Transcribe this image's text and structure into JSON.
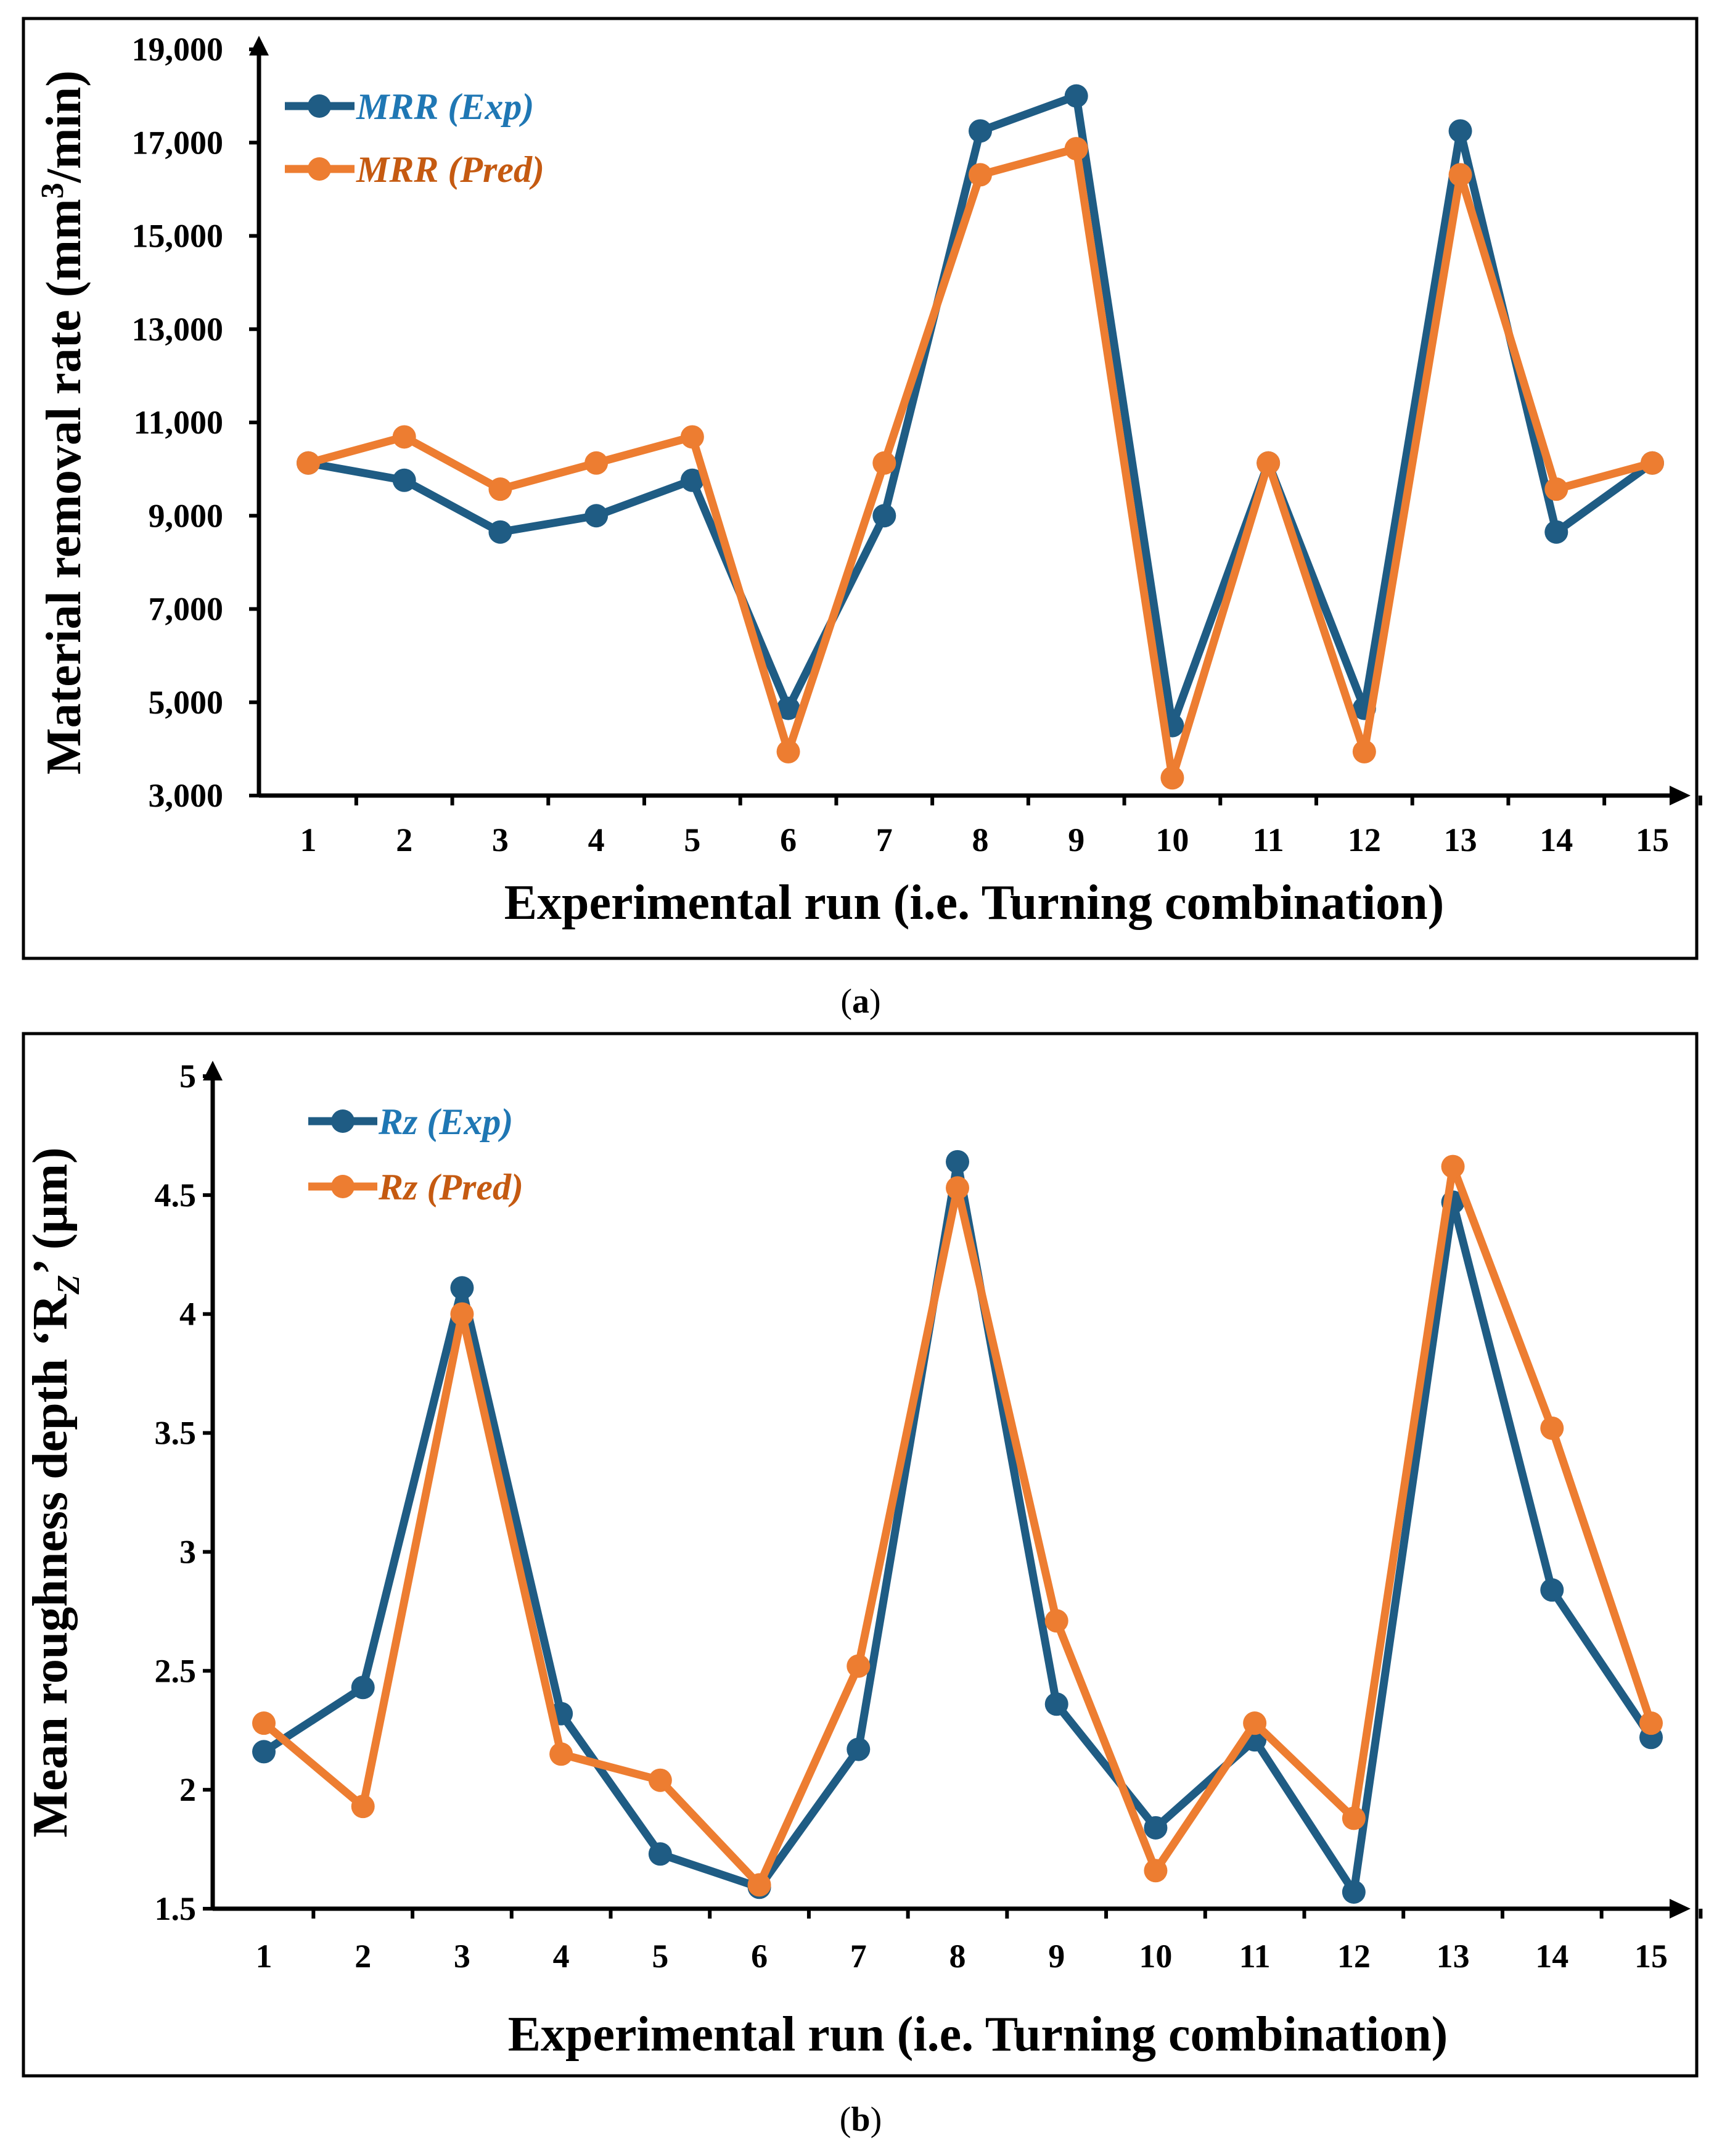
{
  "chart_data": [
    {
      "id": "a",
      "type": "line",
      "panel_label": "a",
      "title": "",
      "xlabel": "Experimental run (i.e. Turning combination)",
      "ylabel_main": "Material removal rate (mm",
      "ylabel_sup": "3",
      "ylabel_tail": "/min)",
      "categories": [
        "1",
        "2",
        "3",
        "4",
        "5",
        "6",
        "7",
        "8",
        "9",
        "10",
        "11",
        "12",
        "13",
        "14",
        "15"
      ],
      "ylim": [
        3000,
        19000
      ],
      "yticks": [
        3000,
        5000,
        7000,
        9000,
        11000,
        13000,
        15000,
        17000,
        19000
      ],
      "ytick_labels": [
        "3,000",
        "5,000",
        "7,000",
        "9,000",
        "11,000",
        "13,000",
        "15,000",
        "17,000",
        "19,000"
      ],
      "grid": false,
      "legend_position": "top-left",
      "series": [
        {
          "name": "MRR (Exp)",
          "color": "#1f5c84",
          "text_color": "#1f77b4",
          "values": [
            10130,
            9760,
            8650,
            9000,
            9760,
            4870,
            9000,
            17250,
            18000,
            4500,
            10130,
            4870,
            17250,
            8650,
            10130
          ]
        },
        {
          "name": "MRR (Pred)",
          "color": "#ed7d31",
          "text_color": "#c55a11",
          "values": [
            10130,
            10690,
            9570,
            10130,
            10690,
            3940,
            10130,
            16310,
            16870,
            3380,
            10130,
            3940,
            16310,
            9570,
            10130
          ]
        }
      ]
    },
    {
      "id": "b",
      "type": "line",
      "panel_label": "b",
      "title": "",
      "xlabel": "Experimental run (i.e. Turning combination)",
      "ylabel_main": "Mean roughness depth ‘R",
      "ylabel_sub": "Z",
      "ylabel_tail": "’ (µm)",
      "categories": [
        "1",
        "2",
        "3",
        "4",
        "5",
        "6",
        "7",
        "8",
        "9",
        "10",
        "11",
        "12",
        "13",
        "14",
        "15"
      ],
      "ylim": [
        1.5,
        5
      ],
      "yticks": [
        1.5,
        2,
        2.5,
        3,
        3.5,
        4,
        4.5,
        5
      ],
      "ytick_labels": [
        "1.5",
        "2",
        "2.5",
        "3",
        "3.5",
        "4",
        "4.5",
        "5"
      ],
      "grid": false,
      "legend_position": "top-left",
      "series": [
        {
          "name": "Rz (Exp)",
          "color": "#1f5c84",
          "text_color": "#1f77b4",
          "values": [
            2.16,
            2.43,
            4.11,
            2.32,
            1.73,
            1.59,
            2.17,
            4.64,
            2.36,
            1.84,
            2.21,
            1.57,
            4.47,
            2.84,
            2.22
          ]
        },
        {
          "name": "Rz (Pred)",
          "color": "#ed7d31",
          "text_color": "#c55a11",
          "values": [
            2.28,
            1.93,
            4.0,
            2.15,
            2.04,
            1.6,
            2.52,
            4.53,
            2.71,
            1.66,
            2.28,
            1.88,
            4.62,
            3.52,
            2.28
          ]
        }
      ]
    }
  ]
}
